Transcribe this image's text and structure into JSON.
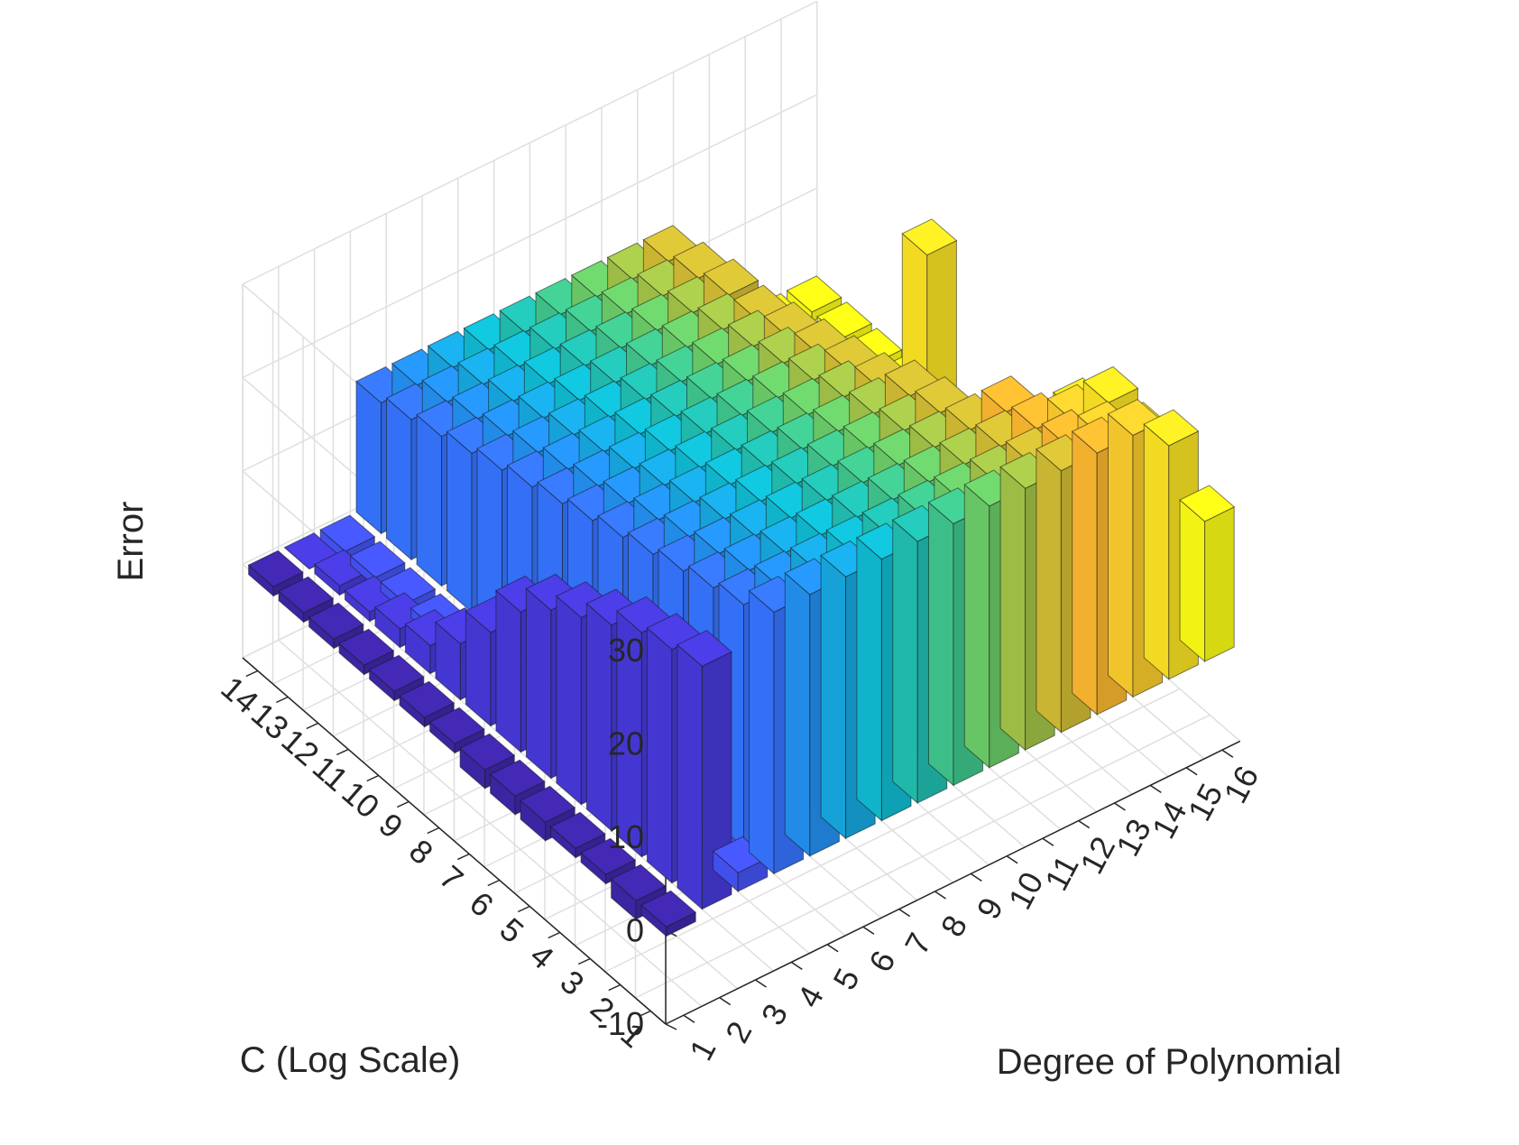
{
  "chart_data": {
    "type": "bar3d",
    "title": "",
    "xlabel": "C (Log Scale)",
    "ylabel": "Degree of Polynomial",
    "zlabel": "Error",
    "x_ticks": [
      "1",
      "2",
      "3",
      "4",
      "5",
      "6",
      "7",
      "8",
      "9",
      "10",
      "11",
      "12",
      "13",
      "14"
    ],
    "y_ticks": [
      "1",
      "2",
      "3",
      "4",
      "5",
      "6",
      "7",
      "8",
      "9",
      "10",
      "11",
      "12",
      "13",
      "14",
      "15",
      "16"
    ],
    "z_ticks": [
      "-10",
      "0",
      "10",
      "20",
      "30"
    ],
    "zlim": [
      -10,
      30
    ],
    "grid": true,
    "colormap": "parula",
    "colormap_by": "degree",
    "colormap_stops": [
      "#3e26a8",
      "#4a42ee",
      "#3573fd",
      "#1a9de6",
      "#10bad0",
      "#29c09e",
      "#6acb68",
      "#bcbe36",
      "#f8b52f",
      "#f9d42a",
      "#f9fb15"
    ],
    "values": [
      [
        -1,
        26,
        2,
        28,
        28,
        28,
        28,
        28,
        28,
        28,
        28,
        28,
        28,
        28,
        25,
        15
      ],
      [
        -2,
        25,
        1,
        26,
        26,
        26,
        26,
        26,
        26,
        26,
        26,
        26,
        26,
        25,
        23,
        13
      ],
      [
        -1,
        24,
        1,
        25,
        25,
        25,
        25,
        25,
        25,
        25,
        25,
        25,
        25,
        24,
        24,
        11
      ],
      [
        -1,
        22,
        0,
        24,
        24,
        24,
        24,
        24,
        24,
        24,
        24,
        24,
        24,
        13,
        20,
        8
      ],
      [
        -2,
        20,
        0,
        23,
        23,
        23,
        23,
        23,
        23,
        23,
        23,
        23,
        14,
        8,
        6,
        5
      ],
      [
        -2,
        18,
        0,
        22,
        22,
        22,
        22,
        22,
        22,
        22,
        22,
        22,
        9,
        4,
        4,
        3
      ],
      [
        -2,
        15,
        0,
        21,
        21,
        21,
        21,
        21,
        21,
        21,
        21,
        20,
        6,
        3,
        3,
        2
      ],
      [
        -1,
        10,
        -1,
        20,
        20,
        20,
        20,
        20,
        20,
        20,
        20,
        19,
        5,
        3,
        3,
        2
      ],
      [
        -1,
        6,
        -1,
        19,
        19,
        19,
        19,
        19,
        19,
        19,
        19,
        18,
        4,
        2,
        23,
        2
      ],
      [
        -1,
        3,
        -1,
        18,
        18,
        18,
        18,
        18,
        18,
        18,
        18,
        17,
        3,
        2,
        2,
        1
      ],
      [
        -1,
        2,
        -1,
        17,
        17,
        17,
        17,
        17,
        17,
        17,
        17,
        16,
        2,
        2,
        1,
        1
      ],
      [
        -1,
        1,
        -1,
        16,
        16,
        16,
        16,
        16,
        16,
        16,
        16,
        16,
        2,
        1,
        1,
        1
      ],
      [
        -1,
        1,
        -1,
        15,
        15,
        15,
        15,
        15,
        15,
        15,
        15,
        15,
        1,
        1,
        1,
        1
      ],
      [
        -1,
        0,
        -1,
        14,
        14,
        14,
        14,
        14,
        14,
        14,
        14,
        14,
        1,
        1,
        1,
        1
      ]
    ]
  }
}
